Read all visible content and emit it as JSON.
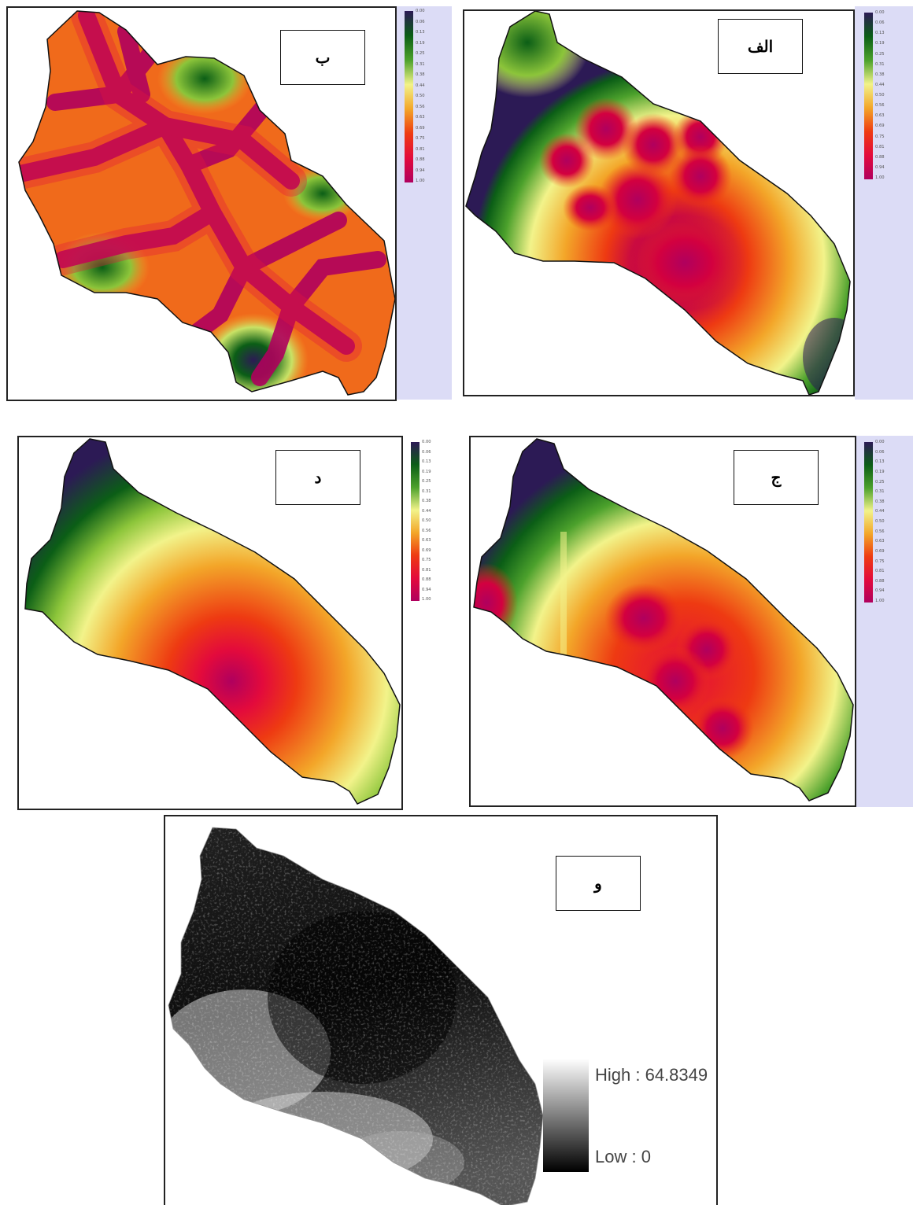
{
  "panels": {
    "alef": {
      "label": "الف"
    },
    "be": {
      "label": "ب"
    },
    "jim": {
      "label": "ج"
    },
    "dal": {
      "label": "د"
    },
    "vav": {
      "label": "و"
    }
  },
  "color_ramp": {
    "stops": [
      "#2c1a55",
      "#0b5e16",
      "#4ca12c",
      "#f2f38a",
      "#f3a629",
      "#ee3a12",
      "#e30a3c",
      "#b0005e"
    ],
    "ticks_alef": [
      "0.00",
      "0.06",
      "0.13",
      "0.19",
      "0.25",
      "0.31",
      "0.38",
      "0.44",
      "0.50",
      "0.56",
      "0.63",
      "0.69",
      "0.75",
      "0.81",
      "0.88",
      "0.94",
      "1.00"
    ],
    "ticks_be": [
      "0.00",
      "0.06",
      "0.13",
      "0.19",
      "0.25",
      "0.31",
      "0.38",
      "0.44",
      "0.50",
      "0.56",
      "0.63",
      "0.69",
      "0.75",
      "0.81",
      "0.88",
      "0.94",
      "1.00"
    ],
    "ticks_jim": [
      "0.00",
      "0.06",
      "0.13",
      "0.19",
      "0.25",
      "0.31",
      "0.38",
      "0.44",
      "0.50",
      "0.56",
      "0.63",
      "0.69",
      "0.75",
      "0.81",
      "0.88",
      "0.94",
      "1.00"
    ],
    "ticks_dal": [
      "0.00",
      "0.06",
      "0.13",
      "0.19",
      "0.25",
      "0.31",
      "0.38",
      "0.44",
      "0.50",
      "0.56",
      "0.63",
      "0.69",
      "0.75",
      "0.81",
      "0.88",
      "0.94",
      "1.00"
    ]
  },
  "grayscale_legend": {
    "high": "High : 64.8349",
    "low": "Low : 0"
  }
}
